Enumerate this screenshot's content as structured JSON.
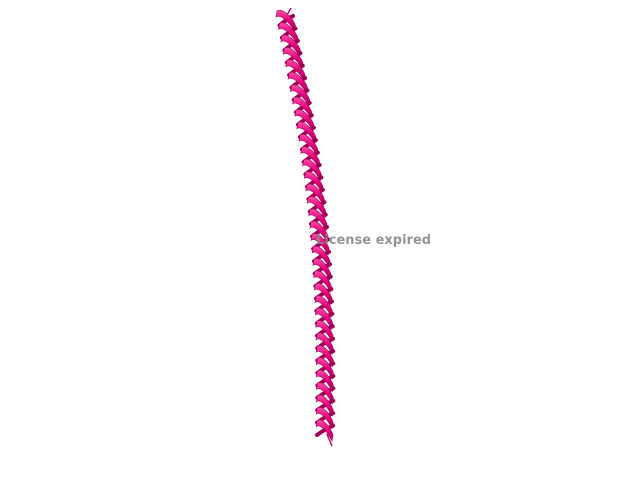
{
  "viewer": {
    "watermark_text": "License expired"
  },
  "structure": {
    "representation": "cartoon-helix",
    "color": "#e6007e",
    "shadow_color": "#9e0055",
    "highlight_color": "#ff4da6",
    "tail_color": "#c8006c"
  }
}
